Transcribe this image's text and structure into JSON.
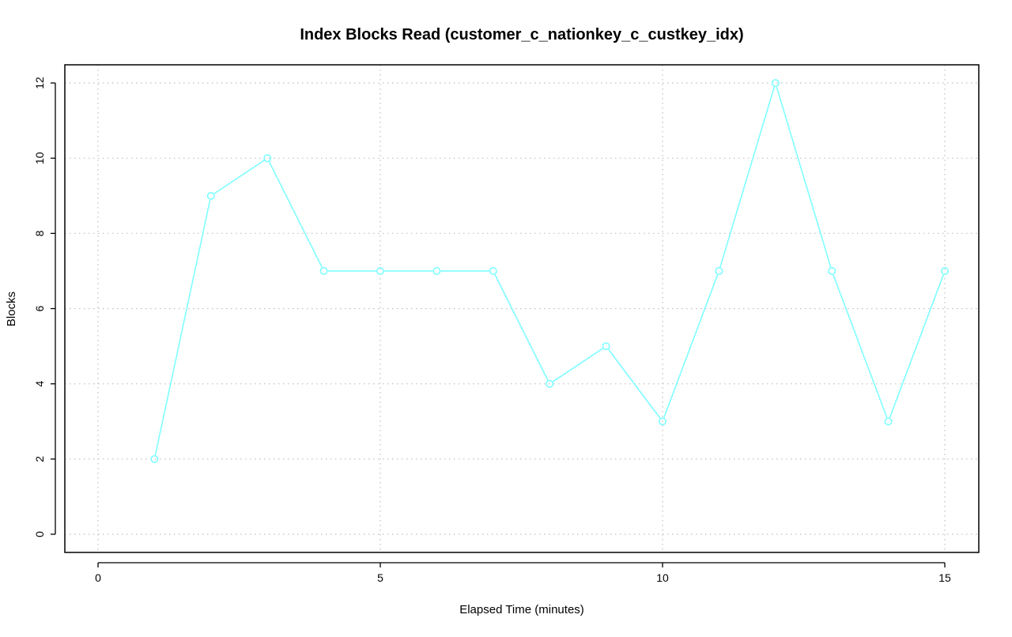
{
  "chart_data": {
    "type": "line",
    "title": "Index Blocks Read (customer_c_nationkey_c_custkey_idx)",
    "xlabel": "Elapsed Time (minutes)",
    "ylabel": "Blocks",
    "xlim": [
      0,
      15
    ],
    "ylim": [
      0,
      12
    ],
    "x_ticks": [
      0,
      5,
      10,
      15
    ],
    "y_ticks": [
      0,
      2,
      4,
      6,
      8,
      10,
      12
    ],
    "grid": true,
    "legend": "none",
    "series": [
      {
        "color": "#7fffff",
        "marker": "open-circle",
        "x": [
          1,
          2,
          3,
          4,
          5,
          6,
          7,
          8,
          9,
          10,
          11,
          12,
          13,
          14,
          15
        ],
        "y": [
          2,
          9,
          10,
          7,
          7,
          7,
          7,
          4,
          5,
          3,
          7,
          12,
          7,
          3,
          7
        ]
      }
    ]
  }
}
